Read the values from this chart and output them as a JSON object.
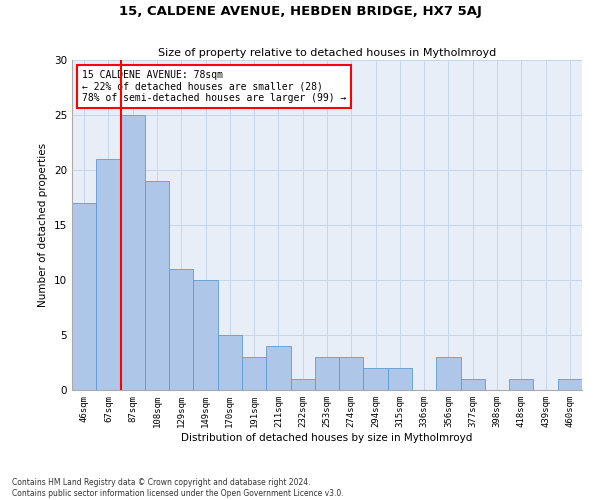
{
  "title": "15, CALDENE AVENUE, HEBDEN BRIDGE, HX7 5AJ",
  "subtitle": "Size of property relative to detached houses in Mytholmroyd",
  "xlabel": "Distribution of detached houses by size in Mytholmroyd",
  "ylabel": "Number of detached properties",
  "footer": "Contains HM Land Registry data © Crown copyright and database right 2024.\nContains public sector information licensed under the Open Government Licence v3.0.",
  "categories": [
    "46sqm",
    "67sqm",
    "87sqm",
    "108sqm",
    "129sqm",
    "149sqm",
    "170sqm",
    "191sqm",
    "211sqm",
    "232sqm",
    "253sqm",
    "274sqm",
    "294sqm",
    "315sqm",
    "336sqm",
    "356sqm",
    "377sqm",
    "398sqm",
    "418sqm",
    "439sqm",
    "460sqm"
  ],
  "values": [
    17,
    21,
    25,
    19,
    11,
    10,
    5,
    3,
    4,
    1,
    3,
    3,
    2,
    2,
    0,
    3,
    1,
    0,
    1,
    0,
    1
  ],
  "bar_color": "#aec6e8",
  "bar_edge_color": "#5b9bd5",
  "grid_color": "#c8d4e8",
  "background_color": "#e8eef8",
  "annotation_text": "15 CALDENE AVENUE: 78sqm\n← 22% of detached houses are smaller (28)\n78% of semi-detached houses are larger (99) →",
  "ylim": [
    0,
    30
  ],
  "yticks": [
    0,
    5,
    10,
    15,
    20,
    25,
    30
  ],
  "red_line_x": 1.5
}
